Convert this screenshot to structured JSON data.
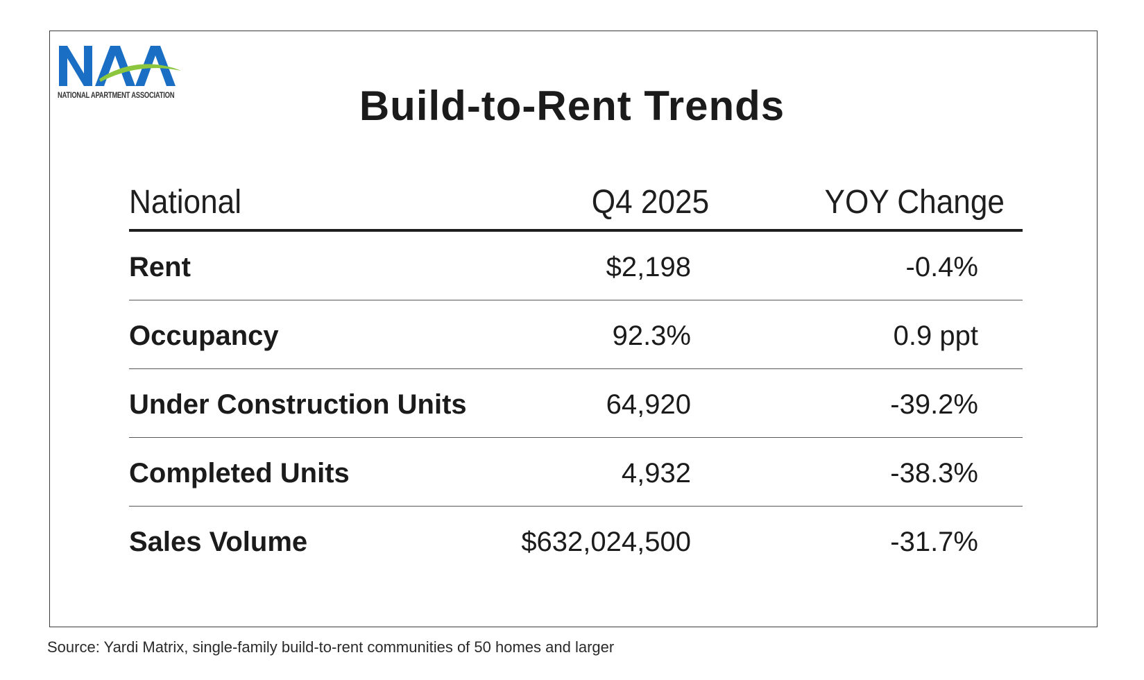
{
  "logo": {
    "wordmark": "NAA",
    "organization": "NATIONAL APARTMENT ASSOCIATION",
    "colors": {
      "blue": "#1a6fc4",
      "green": "#8cc63f"
    }
  },
  "title": "Build-to-Rent Trends",
  "chart_data": {
    "type": "table",
    "title": "Build-to-Rent Trends",
    "columns": [
      "National",
      "Q4 2025",
      "YOY Change"
    ],
    "rows": [
      {
        "label": "Rent",
        "q4_2025": "$2,198",
        "yoy_change": "-0.4%"
      },
      {
        "label": "Occupancy",
        "q4_2025": "92.3%",
        "yoy_change": "0.9 ppt"
      },
      {
        "label": "Under Construction Units",
        "q4_2025": "64,920",
        "yoy_change": "-39.2%"
      },
      {
        "label": "Completed Units",
        "q4_2025": "4,932",
        "yoy_change": "-38.3%"
      },
      {
        "label": "Sales Volume",
        "q4_2025": "$632,024,500",
        "yoy_change": "-31.7%"
      }
    ]
  },
  "source": "Source: Yardi Matrix, single-family build-to-rent communities of 50 homes and larger"
}
